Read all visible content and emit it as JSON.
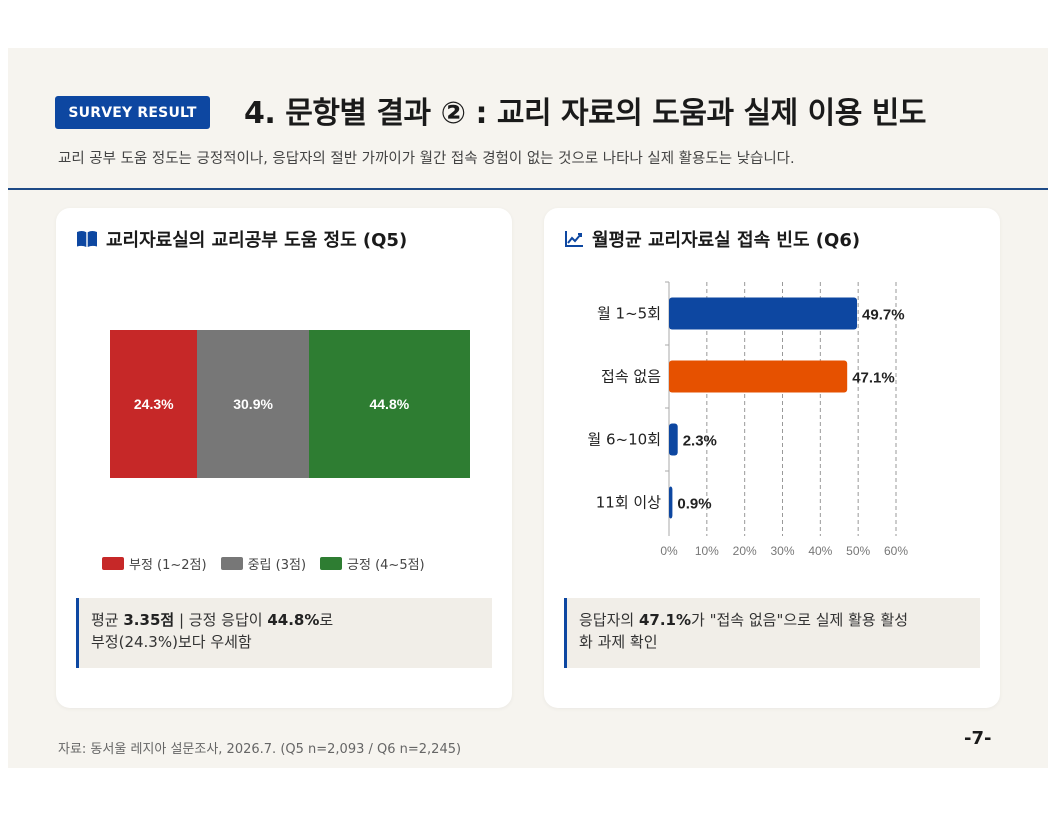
{
  "header": {
    "badge": "SURVEY RESULT",
    "title": "4. 문항별 결과 ② : 교리 자료의 도움과 실제 이용 빈도",
    "subtitle": "교리 공부 도움 정도는 긍정적이나, 응답자의 절반 가까이가 월간 접속 경험이 없는 것으로 나타나 실제 활용도는 낮습니다."
  },
  "left_card": {
    "title": "교리자료실의 교리공부 도움 정도 (Q5)",
    "icon": "book-icon",
    "note": {
      "part1": "평균 ",
      "avg": "3.35점",
      "part2": " | 긍정 응답이 ",
      "pct": "44.8%",
      "part3": "로",
      "line2": "부정(24.3%)보다 우세함"
    }
  },
  "right_card": {
    "title": "월평균 교리자료실 접속 빈도 (Q6)",
    "icon": "line-chart-icon",
    "note": {
      "part1": "응답자의 ",
      "pct": "47.1%",
      "part2": "가 \"접속 없음\"으로 실제 활용 활성",
      "line2": "화 과제 확인"
    }
  },
  "chart_data": [
    {
      "type": "bar",
      "orientation": "horizontal-stacked",
      "title": "교리자료실의 교리공부 도움 정도 (Q5)",
      "series": [
        {
          "name": "부정 (1~2점)",
          "values": [
            24.3
          ],
          "label": "24.3%",
          "color": "#c62828"
        },
        {
          "name": "중립 (3점)",
          "values": [
            30.9
          ],
          "label": "30.9%",
          "color": "#777777"
        },
        {
          "name": "긍정 (4~5점)",
          "values": [
            44.8
          ],
          "label": "44.8%",
          "color": "#2e7d32"
        }
      ],
      "legend": "bottom",
      "unit": "%"
    },
    {
      "type": "bar",
      "orientation": "horizontal",
      "title": "월평균 교리자료실 접속 빈도 (Q6)",
      "categories": [
        "월 1~5회",
        "접속 없음",
        "월 6~10회",
        "11회 이상"
      ],
      "values": [
        49.7,
        47.1,
        2.3,
        0.9
      ],
      "labels": [
        "49.7%",
        "47.1%",
        "2.3%",
        "0.9%"
      ],
      "colors": [
        "#0d47a1",
        "#e65100",
        "#0d47a1",
        "#0d47a1"
      ],
      "xlim": [
        0,
        60
      ],
      "xticks": [
        "0%",
        "10%",
        "20%",
        "30%",
        "40%",
        "50%",
        "60%"
      ],
      "grid": "vertical dashed",
      "unit": "%"
    }
  ],
  "footer": {
    "source": "자료: 동서울 레지아 설문조사, 2026.7. (Q5 n=2,093 / Q6 n=2,245)",
    "page": "-7-"
  }
}
